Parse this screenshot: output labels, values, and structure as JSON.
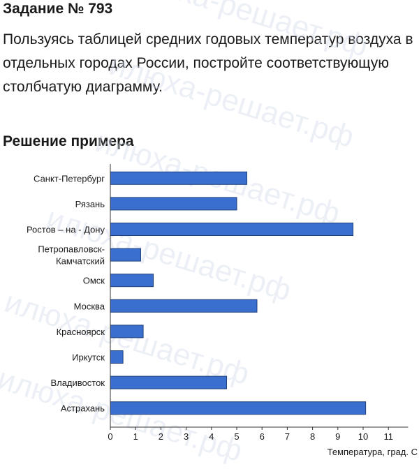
{
  "task": {
    "title": "Задание № 793",
    "text": "Пользуясь таблицей средних годовых температур воздуха в отдельных городах России, постройте соответствующую столбчатую диаграмму."
  },
  "solution": {
    "title": "Решение примера"
  },
  "watermark": "илюха-решает.рф",
  "chart_data": {
    "type": "bar",
    "orientation": "horizontal",
    "categories": [
      "Санкт-Петербург",
      "Рязань",
      "Ростов – на - Дону",
      "Петропавловск-\nКамчатский",
      "Омск",
      "Москва",
      "Красноярск",
      "Иркутск",
      "Владивосток",
      "Астрахань"
    ],
    "values": [
      5.4,
      5.0,
      9.6,
      1.2,
      1.7,
      5.8,
      1.3,
      0.5,
      4.6,
      10.1
    ],
    "xlabel": "Температура, град. С",
    "ticks": [
      0,
      1,
      2,
      3,
      4,
      5,
      6,
      7,
      8,
      9,
      10,
      11
    ],
    "xlim": [
      0,
      12
    ],
    "bar_color": "#3a6fd0",
    "bar_border": "#1e3f7a",
    "grid": false
  }
}
